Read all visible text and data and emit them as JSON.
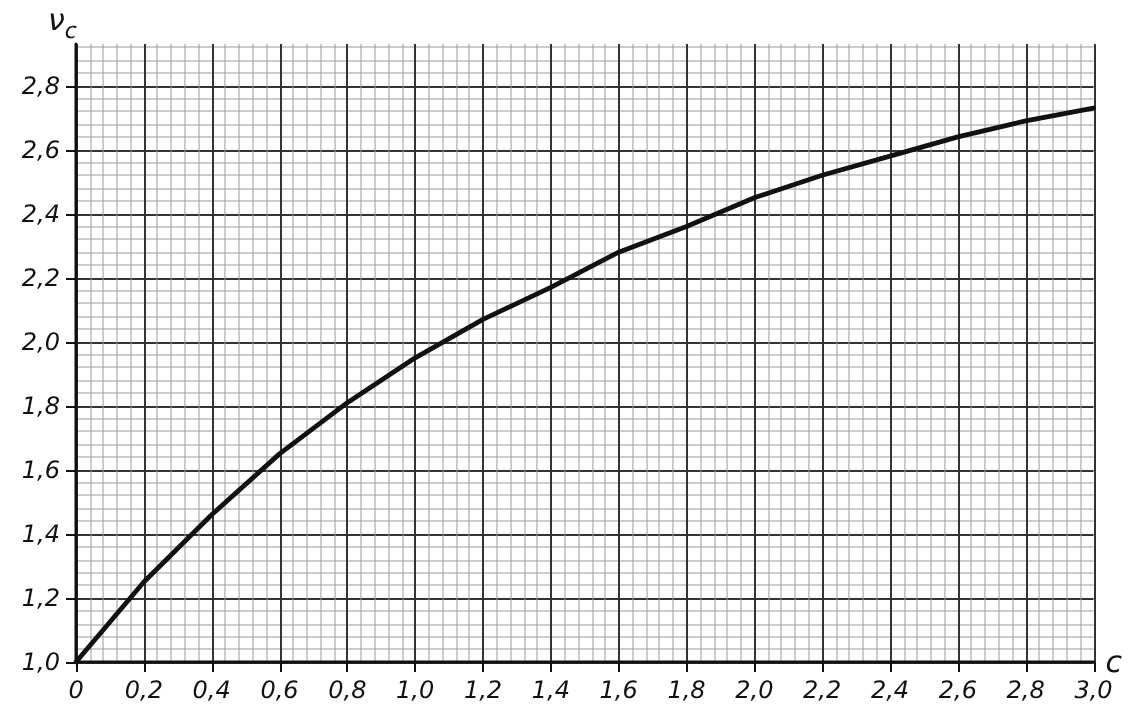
{
  "chart_data": {
    "type": "line",
    "xlabel": "c",
    "ylabel": "ν$_{c}$",
    "x": [
      0,
      0.2,
      0.4,
      0.6,
      0.8,
      1.0,
      1.2,
      1.4,
      1.6,
      1.8,
      2.0,
      2.2,
      2.4,
      2.6,
      2.8,
      3.0
    ],
    "series": [
      {
        "color": "#111111",
        "values": [
          1.0,
          1.25,
          1.46,
          1.65,
          1.81,
          1.95,
          2.07,
          2.17,
          2.28,
          2.36,
          2.45,
          2.52,
          2.58,
          2.64,
          2.69,
          2.73
        ]
      }
    ],
    "xlim": [
      0,
      3.0
    ],
    "ylim": [
      1.0,
      2.93
    ],
    "xticks": [
      {
        "value": 0,
        "label": "0"
      },
      {
        "value": 0.2,
        "label": "0,2"
      },
      {
        "value": 0.4,
        "label": "0,4"
      },
      {
        "value": 0.6,
        "label": "0,6"
      },
      {
        "value": 0.8,
        "label": "0,8"
      },
      {
        "value": 1.0,
        "label": "1,0"
      },
      {
        "value": 1.2,
        "label": "1,2"
      },
      {
        "value": 1.4,
        "label": "1,4"
      },
      {
        "value": 1.6,
        "label": "1,6"
      },
      {
        "value": 1.8,
        "label": "1,8"
      },
      {
        "value": 2.0,
        "label": "2,0"
      },
      {
        "value": 2.2,
        "label": "2,2"
      },
      {
        "value": 2.4,
        "label": "2,4"
      },
      {
        "value": 2.6,
        "label": "2,6"
      },
      {
        "value": 2.8,
        "label": "2,8"
      },
      {
        "value": 3.0,
        "label": "3,0"
      }
    ],
    "yticks": [
      {
        "value": 1.0,
        "label": "1,0"
      },
      {
        "value": 1.2,
        "label": "1,2"
      },
      {
        "value": 1.4,
        "label": "1,4"
      },
      {
        "value": 1.6,
        "label": "1,6"
      },
      {
        "value": 1.8,
        "label": "1,8"
      },
      {
        "value": 2.0,
        "label": "2,0"
      },
      {
        "value": 2.2,
        "label": "2,2"
      },
      {
        "value": 2.4,
        "label": "2,4"
      },
      {
        "value": 2.6,
        "label": "2,6"
      },
      {
        "value": 2.8,
        "label": "2,8"
      }
    ],
    "grid": true,
    "marker": "none",
    "line_style": "solid"
  }
}
